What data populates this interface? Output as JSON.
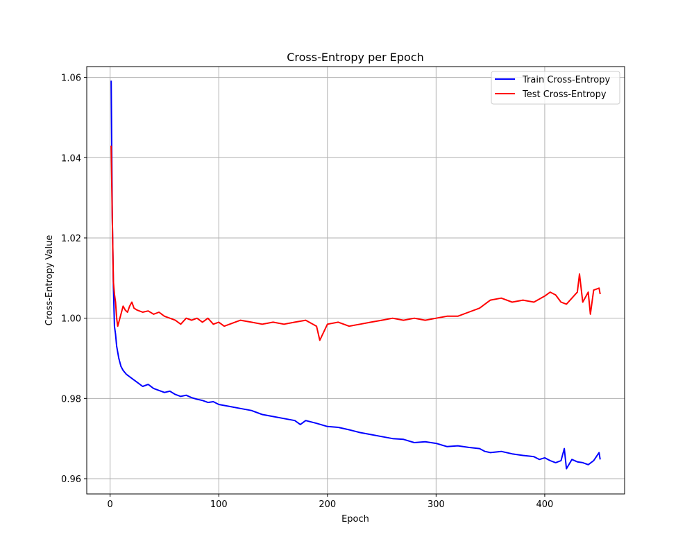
{
  "chart_data": {
    "type": "line",
    "title": "Cross-Entropy per Epoch",
    "xlabel": "Epoch",
    "ylabel": "Cross-Entropy Value",
    "xlim": [
      -21.5,
      473.5
    ],
    "ylim": [
      0.9562,
      1.0627
    ],
    "xticks": [
      0,
      100,
      200,
      300,
      400
    ],
    "xtick_labels": [
      "0",
      "100",
      "200",
      "300",
      "400"
    ],
    "yticks": [
      0.96,
      0.98,
      1.0,
      1.02,
      1.04,
      1.06
    ],
    "ytick_labels": [
      "0.96",
      "0.98",
      "1.00",
      "1.02",
      "1.04",
      "1.06"
    ],
    "grid": true,
    "legend_position": "upper right",
    "series": [
      {
        "name": "Train Cross-Entropy",
        "color": "#0000ff",
        "x": [
          1,
          2,
          3,
          4,
          5,
          6,
          8,
          10,
          12,
          15,
          20,
          25,
          30,
          35,
          40,
          45,
          50,
          55,
          60,
          65,
          70,
          75,
          80,
          85,
          90,
          95,
          100,
          110,
          120,
          130,
          140,
          150,
          160,
          170,
          175,
          180,
          190,
          200,
          210,
          220,
          230,
          240,
          250,
          260,
          270,
          280,
          290,
          300,
          310,
          320,
          330,
          340,
          345,
          350,
          360,
          370,
          380,
          390,
          395,
          400,
          405,
          410,
          415,
          418,
          420,
          425,
          430,
          435,
          440,
          445,
          450,
          451
        ],
        "y": [
          1.0592,
          1.025,
          1.008,
          0.998,
          0.996,
          0.993,
          0.99,
          0.988,
          0.987,
          0.986,
          0.985,
          0.984,
          0.983,
          0.9835,
          0.9825,
          0.982,
          0.9815,
          0.9818,
          0.981,
          0.9805,
          0.9808,
          0.9802,
          0.9798,
          0.9795,
          0.979,
          0.9792,
          0.9785,
          0.978,
          0.9775,
          0.977,
          0.976,
          0.9755,
          0.975,
          0.9745,
          0.9735,
          0.9745,
          0.9738,
          0.973,
          0.9728,
          0.9722,
          0.9715,
          0.971,
          0.9705,
          0.97,
          0.9698,
          0.969,
          0.9692,
          0.9688,
          0.968,
          0.9682,
          0.9678,
          0.9675,
          0.9668,
          0.9665,
          0.9668,
          0.9662,
          0.9658,
          0.9655,
          0.9648,
          0.9652,
          0.9645,
          0.964,
          0.9645,
          0.9675,
          0.9625,
          0.9648,
          0.9642,
          0.964,
          0.9635,
          0.9645,
          0.9665,
          0.9648
        ]
      },
      {
        "name": "Test Cross-Entropy",
        "color": "#ff0000",
        "x": [
          1,
          2,
          3,
          4,
          5,
          6,
          7,
          8,
          10,
          12,
          14,
          16,
          18,
          20,
          22,
          25,
          30,
          35,
          40,
          45,
          50,
          55,
          60,
          65,
          70,
          75,
          80,
          85,
          90,
          95,
          100,
          105,
          110,
          115,
          120,
          130,
          140,
          150,
          160,
          170,
          180,
          190,
          193,
          200,
          210,
          220,
          230,
          240,
          250,
          260,
          270,
          280,
          290,
          300,
          310,
          320,
          330,
          340,
          350,
          360,
          370,
          380,
          390,
          400,
          405,
          410,
          415,
          420,
          425,
          430,
          432,
          435,
          440,
          442,
          445,
          450,
          451
        ],
        "y": [
          1.043,
          1.025,
          1.009,
          1.006,
          1.004,
          1.0,
          0.998,
          0.999,
          1.001,
          1.003,
          1.002,
          1.0015,
          1.003,
          1.004,
          1.0025,
          1.002,
          1.0015,
          1.0018,
          1.001,
          1.0015,
          1.0005,
          1.0,
          0.9995,
          0.9985,
          1.0,
          0.9995,
          1.0,
          0.999,
          1.0,
          0.9985,
          0.999,
          0.998,
          0.9985,
          0.999,
          0.9995,
          0.999,
          0.9985,
          0.999,
          0.9985,
          0.999,
          0.9995,
          0.998,
          0.9945,
          0.9985,
          0.999,
          0.998,
          0.9985,
          0.999,
          0.9995,
          1.0,
          0.9995,
          1.0,
          0.9995,
          1.0,
          1.0005,
          1.0005,
          1.0015,
          1.0025,
          1.0045,
          1.005,
          1.004,
          1.0045,
          1.004,
          1.0055,
          1.0065,
          1.0058,
          1.004,
          1.0035,
          1.005,
          1.0065,
          1.011,
          1.004,
          1.0065,
          1.001,
          1.007,
          1.0075,
          1.006
        ]
      }
    ]
  }
}
